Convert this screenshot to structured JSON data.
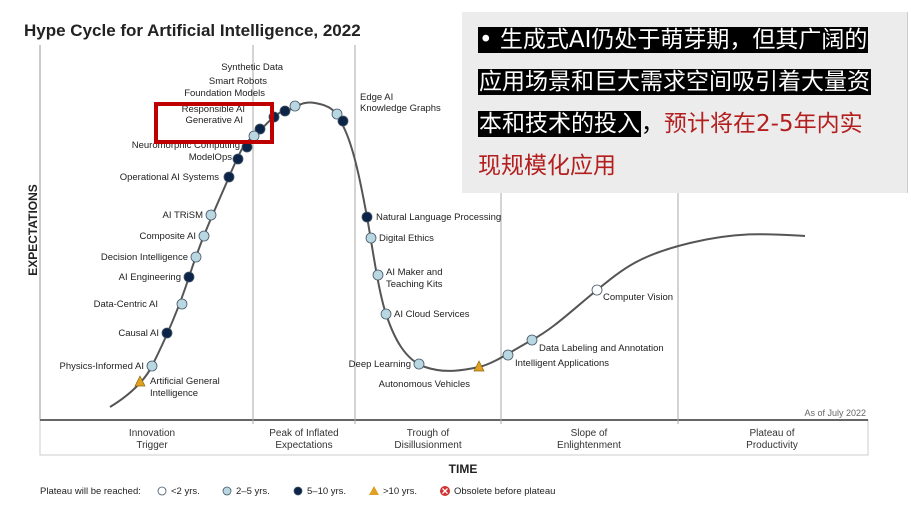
{
  "title": "Hype Cycle for Artificial Intelligence, 2022",
  "y_axis_label": "EXPECTATIONS",
  "x_axis_label": "TIME",
  "as_of": "As of July 2022",
  "phases": [
    [
      "Innovation",
      "Trigger"
    ],
    [
      "Peak of Inflated",
      "Expectations"
    ],
    [
      "Trough of",
      "Disillusionment"
    ],
    [
      "Slope of",
      "Enlightenment"
    ],
    [
      "Plateau of",
      "Productivity"
    ]
  ],
  "legend": {
    "title": "Plateau will be reached:",
    "items": [
      {
        "label": "<2 yrs.",
        "marker": "white-circle"
      },
      {
        "label": "2–5 yrs.",
        "marker": "light-blue-circle"
      },
      {
        "label": "5–10 yrs.",
        "marker": "dark-navy-circle"
      },
      {
        "label": ">10 yrs.",
        "marker": "orange-triangle"
      },
      {
        "label": "Obsolete before plateau",
        "marker": "red-x-circle"
      }
    ]
  },
  "colors": {
    "curve": "#555555",
    "white": "#ffffff",
    "light": "#b9d7e0",
    "dark": "#0b2447",
    "triangle": "#e0a020",
    "obsolete": "#d03030",
    "highlight_box": "#c00000",
    "overlay_red": "#b41e1e"
  },
  "chart_data": {
    "type": "hype-cycle",
    "items": [
      {
        "name": "Synthetic Data",
        "plateau": "2–5 yrs."
      },
      {
        "name": "Smart Robots",
        "plateau": "5–10 yrs."
      },
      {
        "name": "Foundation Models",
        "plateau": "5–10 yrs."
      },
      {
        "name": "Responsible AI",
        "plateau": "5–10 yrs."
      },
      {
        "name": "Generative AI",
        "plateau": "2–5 yrs."
      },
      {
        "name": "Neuromorphic Computing",
        "plateau": "5–10 yrs."
      },
      {
        "name": "ModelOps",
        "plateau": "5–10 yrs."
      },
      {
        "name": "Operational AI Systems",
        "plateau": "5–10 yrs."
      },
      {
        "name": "AI TRiSM",
        "plateau": "2–5 yrs."
      },
      {
        "name": "Composite AI",
        "plateau": "2–5 yrs."
      },
      {
        "name": "Decision Intelligence",
        "plateau": "2–5 yrs."
      },
      {
        "name": "AI Engineering",
        "plateau": "5–10 yrs."
      },
      {
        "name": "Data-Centric AI",
        "plateau": "2–5 yrs."
      },
      {
        "name": "Causal AI",
        "plateau": "5–10 yrs."
      },
      {
        "name": "Physics-Informed AI",
        "plateau": "2–5 yrs."
      },
      {
        "name": "Artificial General Intelligence",
        "plateau": ">10 yrs."
      },
      {
        "name": "Edge AI",
        "plateau": "2–5 yrs."
      },
      {
        "name": "Knowledge Graphs",
        "plateau": "5–10 yrs."
      },
      {
        "name": "Natural Language Processing",
        "plateau": "5–10 yrs."
      },
      {
        "name": "Digital Ethics",
        "plateau": "2–5 yrs."
      },
      {
        "name": "AI Maker and Teaching Kits",
        "plateau": "2–5 yrs."
      },
      {
        "name": "AI Cloud Services",
        "plateau": "2–5 yrs."
      },
      {
        "name": "Deep Learning",
        "plateau": "2–5 yrs."
      },
      {
        "name": "Autonomous Vehicles",
        "plateau": ">10 yrs."
      },
      {
        "name": "Intelligent Applications",
        "plateau": "2–5 yrs."
      },
      {
        "name": "Data Labeling and Annotation",
        "plateau": "2–5 yrs."
      },
      {
        "name": "Computer Vision",
        "plateau": "<2 yrs."
      }
    ]
  },
  "overlay": {
    "line1": "• 生成式AI仍处于萌芽期，但其广阔的",
    "line2": "应用场景和巨大需求空间吸引着大量资",
    "line3a": "本和技术的投入",
    "line3b": "，",
    "line3c": "预计将在2-5年内实",
    "line4": "现规模化应用"
  }
}
